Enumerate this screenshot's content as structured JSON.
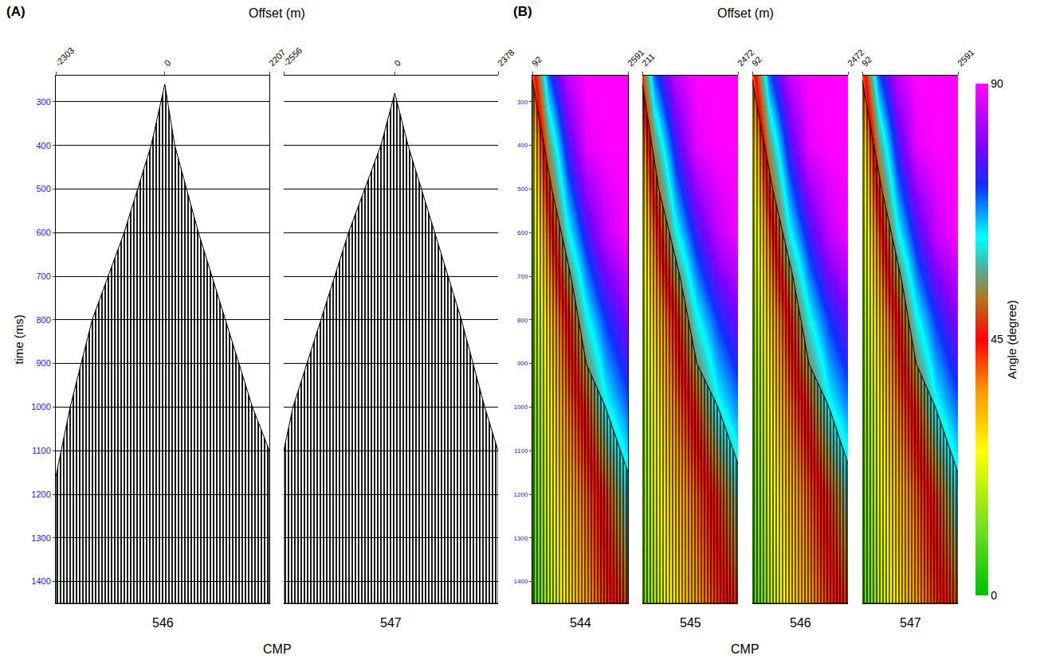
{
  "chart_data": [
    {
      "type": "wiggle_gather",
      "panel": "(A)",
      "x_label": "Offset (m)",
      "y_label": "time (ms)",
      "common_x_label": "CMP",
      "ylim": [
        240,
        1450
      ],
      "yticks": [
        300,
        400,
        500,
        600,
        700,
        800,
        900,
        1000,
        1100,
        1200,
        1300,
        1400
      ],
      "grid": true,
      "gathers": [
        {
          "cmp": 546,
          "xlim": [
            -2303,
            2207
          ],
          "xticks": [
            -2303,
            0,
            2207
          ],
          "mute": {
            "offset": [
              -2303,
              -2000,
              -1535,
              -860,
              -290,
              0,
              210,
              710,
              1280,
              1850,
              2207
            ],
            "time": [
              1160,
              1000,
              800,
              600,
              400,
              260,
              400,
              600,
              800,
              1000,
              1100
            ]
          }
        },
        {
          "cmp": 547,
          "xlim": [
            -2556,
            2378
          ],
          "xticks": [
            -2556,
            0,
            2378
          ],
          "mute": {
            "offset": [
              -2556,
              -2343,
              -1700,
              -1065,
              -320,
              0,
              307,
              920,
              1534,
              2071,
              2378
            ],
            "time": [
              1100,
              1000,
              800,
              600,
              400,
              280,
              400,
              600,
              800,
              1000,
              1100
            ]
          }
        }
      ]
    },
    {
      "type": "angle_gather",
      "panel": "(B)",
      "x_label": "Offset (m)",
      "common_x_label": "CMP",
      "ylim": [
        240,
        1450
      ],
      "yticks": [
        300,
        400,
        500,
        600,
        700,
        800,
        900,
        1000,
        1100,
        1200,
        1300,
        1400
      ],
      "grid": true,
      "gathers": [
        {
          "cmp": 544,
          "xlim": [
            92,
            2591
          ],
          "xticks": [
            92,
            2591
          ],
          "mute": {
            "offset": [
              92,
              600,
              1100,
              1500,
              2000,
              2591
            ],
            "time": [
              250,
              500,
              700,
              900,
              1000,
              1150
            ]
          }
        },
        {
          "cmp": 545,
          "xlim": [
            211,
            2472
          ],
          "xticks": [
            211,
            2472
          ],
          "mute": {
            "offset": [
              211,
              600,
              1100,
              1500,
              2000,
              2472
            ],
            "time": [
              260,
              500,
              700,
              900,
              1000,
              1130
            ]
          }
        },
        {
          "cmp": 546,
          "xlim": [
            92,
            2472
          ],
          "xticks": [
            92,
            2472
          ],
          "mute": {
            "offset": [
              92,
              600,
              1100,
              1500,
              2000,
              2472
            ],
            "time": [
              250,
              500,
              700,
              900,
              1000,
              1130
            ]
          }
        },
        {
          "cmp": 547,
          "xlim": [
            92,
            2591
          ],
          "xticks": [
            92,
            2591
          ],
          "mute": {
            "offset": [
              92,
              600,
              1100,
              1500,
              2000,
              2591
            ],
            "time": [
              250,
              500,
              700,
              900,
              1000,
              1150
            ]
          }
        }
      ],
      "angle": {
        "offset": [
          92,
          500,
          1000,
          1500,
          2000,
          2591
        ],
        "time": [
          240,
          400,
          600,
          800,
          1000,
          1200,
          1450
        ],
        "values": [
          [
            40,
            70,
            85,
            90,
            90,
            90
          ],
          [
            25,
            55,
            75,
            88,
            90,
            90
          ],
          [
            18,
            40,
            62,
            75,
            85,
            90
          ],
          [
            14,
            30,
            45,
            62,
            72,
            80
          ],
          [
            11,
            25,
            38,
            48,
            62,
            70
          ],
          [
            9,
            22,
            32,
            40,
            48,
            60
          ],
          [
            7,
            18,
            28,
            35,
            42,
            50
          ]
        ]
      },
      "colorbar": {
        "title": "Angle (degree)",
        "range": [
          0,
          90
        ],
        "ticks": [
          0,
          45,
          90
        ]
      }
    }
  ]
}
